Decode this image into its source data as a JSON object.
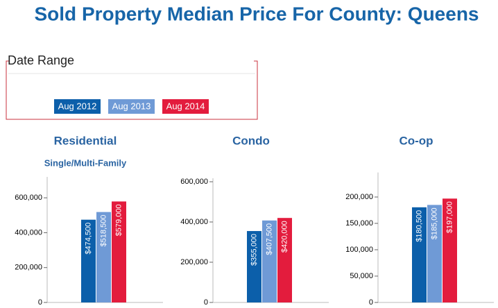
{
  "title": "Sold Property Median Price For County: Queens",
  "date_range": {
    "label": "Date Range",
    "items": [
      {
        "name": "Aug 2012",
        "color": "#0c5faa"
      },
      {
        "name": "Aug 2013",
        "color": "#6f9ad6"
      },
      {
        "name": "Aug 2014",
        "color": "#e31c3d"
      }
    ]
  },
  "chart_data": [
    {
      "type": "bar",
      "title": "Residential",
      "subtitle": "Single/Multi-Family",
      "values": [
        474500,
        518500,
        579000
      ],
      "value_labels": [
        "$474,500",
        "$518,500",
        "$579,000"
      ],
      "ylim": [
        0,
        700000
      ],
      "yticks": [
        0,
        {
          "value": 200000,
          "label": "200,000"
        },
        {
          "value": 400000,
          "label": "400,000"
        },
        {
          "value": 600000,
          "label": "600,000"
        }
      ]
    },
    {
      "type": "bar",
      "title": "Condo",
      "values": [
        355000,
        407500,
        420000
      ],
      "value_labels": [
        "$355,000",
        "$407,500",
        "$420,000"
      ],
      "ylim": [
        0,
        600000
      ],
      "yticks": [
        0,
        {
          "value": 200000,
          "label": "200,000"
        },
        {
          "value": 400000,
          "label": "400,000"
        },
        {
          "value": 600000,
          "label": "600,000"
        }
      ]
    },
    {
      "type": "bar",
      "title": "Co-op",
      "values": [
        180500,
        185000,
        197000
      ],
      "value_labels": [
        "$180,500",
        "$185,000",
        "$197,000"
      ],
      "ylim": [
        0,
        240000
      ],
      "yticks": [
        0,
        {
          "value": 50000,
          "label": "50,000"
        },
        {
          "value": 100000,
          "label": "100,000"
        },
        {
          "value": 150000,
          "label": "150,000"
        },
        {
          "value": 200000,
          "label": "200,000"
        }
      ]
    }
  ]
}
